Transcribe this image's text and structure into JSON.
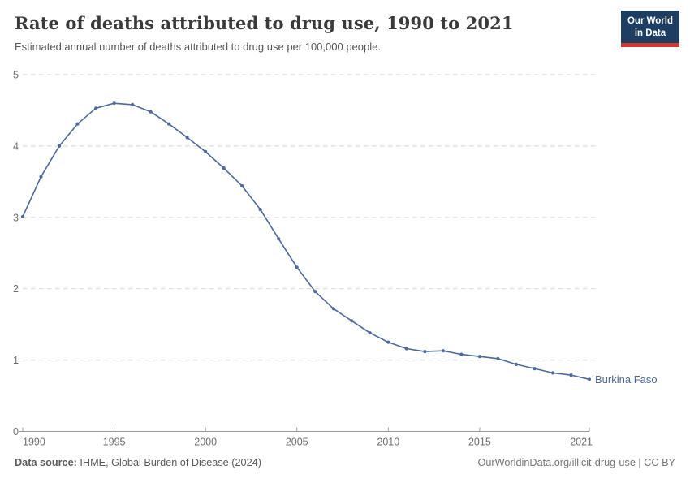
{
  "header": {
    "title": "Rate of deaths attributed to drug use, 1990 to 2021",
    "subtitle": "Estimated annual number of deaths attributed to drug use per 100,000 people.",
    "logo": {
      "line1": "Our World",
      "line2": "in Data"
    }
  },
  "chart_data": {
    "type": "line",
    "title": "Rate of deaths attributed to drug use, 1990 to 2021",
    "xlabel": "",
    "ylabel": "",
    "x": [
      1990,
      1991,
      1992,
      1993,
      1994,
      1995,
      1996,
      1997,
      1998,
      1999,
      2000,
      2001,
      2002,
      2003,
      2004,
      2005,
      2006,
      2007,
      2008,
      2009,
      2010,
      2011,
      2012,
      2013,
      2014,
      2015,
      2016,
      2017,
      2018,
      2019,
      2020,
      2021
    ],
    "series": [
      {
        "name": "Burkina Faso",
        "values": [
          3.01,
          3.57,
          4.0,
          4.31,
          4.53,
          4.6,
          4.58,
          4.48,
          4.31,
          4.12,
          3.92,
          3.69,
          3.44,
          3.11,
          2.7,
          2.3,
          1.96,
          1.72,
          1.55,
          1.38,
          1.25,
          1.16,
          1.12,
          1.13,
          1.08,
          1.05,
          1.02,
          0.94,
          0.88,
          0.82,
          0.79,
          0.73
        ]
      }
    ],
    "xlim": [
      1990,
      2021
    ],
    "ylim": [
      0,
      5
    ],
    "xticks": [
      1990,
      1995,
      2000,
      2005,
      2010,
      2015,
      2021
    ],
    "yticks": [
      0,
      1,
      2,
      3,
      4,
      5
    ],
    "grid": "horizontal-dashed",
    "legend_position": "end-of-line-label",
    "line_color": "#4c6a9c",
    "marker": "dot"
  },
  "colors": {
    "accent_navy": "#1d3d63",
    "accent_red": "#d0392e",
    "grid": "#dcdcdc",
    "axis": "#9a9a9a",
    "tick_text": "#6e6e6e",
    "line": "#4c6a9c"
  },
  "footer": {
    "source_label": "Data source:",
    "source_text": " IHME, Global Burden of Disease (2024)",
    "link_text": "OurWorldinData.org/illicit-drug-use | CC BY"
  }
}
